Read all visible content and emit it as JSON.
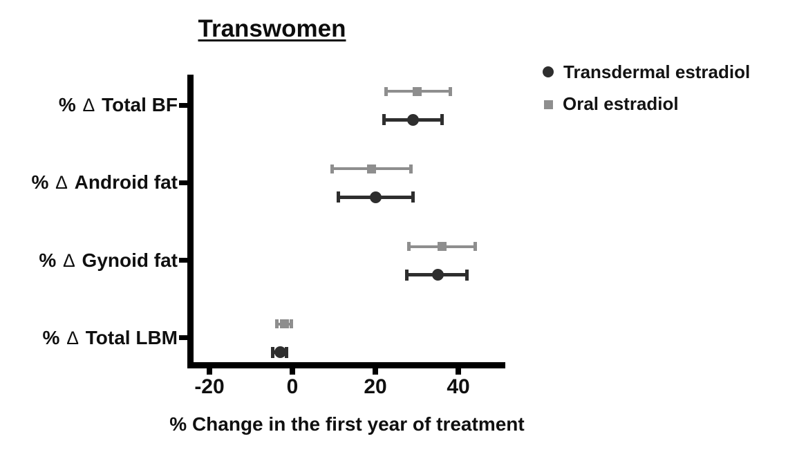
{
  "title": "Transwomen",
  "legend": {
    "items": [
      {
        "label": "Transdermal estradiol",
        "marker": "circle-icon",
        "color": "#2e2e2e"
      },
      {
        "label": "Oral estradiol",
        "marker": "square-icon",
        "color": "#8e8e8e"
      }
    ]
  },
  "chart_data": {
    "type": "scatter",
    "subtype": "horizontal-dot-plot-with-error-bars",
    "title": "Transwomen",
    "xlabel": "% Change in the first year of treatment",
    "ylabel": "",
    "categories": [
      "% Δ Total BF",
      "% Δ Android fat",
      "% Δ Gynoid fat",
      "% Δ Total LBM"
    ],
    "xticks": [
      -20,
      0,
      20,
      40
    ],
    "xlim": [
      -25,
      51
    ],
    "grid": false,
    "legend_position": "top-right",
    "axis_color": "#000000",
    "series": [
      {
        "name": "Transdermal estradiol",
        "marker": "circle",
        "color": "#2e2e2e",
        "row_position": "below-category-tick",
        "points": [
          {
            "category": "% Δ Total BF",
            "value": 29,
            "ci_low": 22,
            "ci_high": 36
          },
          {
            "category": "% Δ Android fat",
            "value": 20,
            "ci_low": 11,
            "ci_high": 29
          },
          {
            "category": "% Δ Gynoid fat",
            "value": 35,
            "ci_low": 27.5,
            "ci_high": 42
          },
          {
            "category": "% Δ Total LBM",
            "value": -3,
            "ci_low": -4.8,
            "ci_high": -1.5
          }
        ]
      },
      {
        "name": "Oral estradiol",
        "marker": "square",
        "color": "#8e8e8e",
        "row_position": "above-category-tick",
        "points": [
          {
            "category": "% Δ Total BF",
            "value": 30,
            "ci_low": 22.5,
            "ci_high": 38
          },
          {
            "category": "% Δ Android fat",
            "value": 19,
            "ci_low": 9.5,
            "ci_high": 28.5
          },
          {
            "category": "% Δ Gynoid fat",
            "value": 36,
            "ci_low": 28,
            "ci_high": 44
          },
          {
            "category": "% Δ Total LBM",
            "value": -2,
            "ci_low": -3.7,
            "ci_high": -0.3
          }
        ]
      }
    ]
  }
}
